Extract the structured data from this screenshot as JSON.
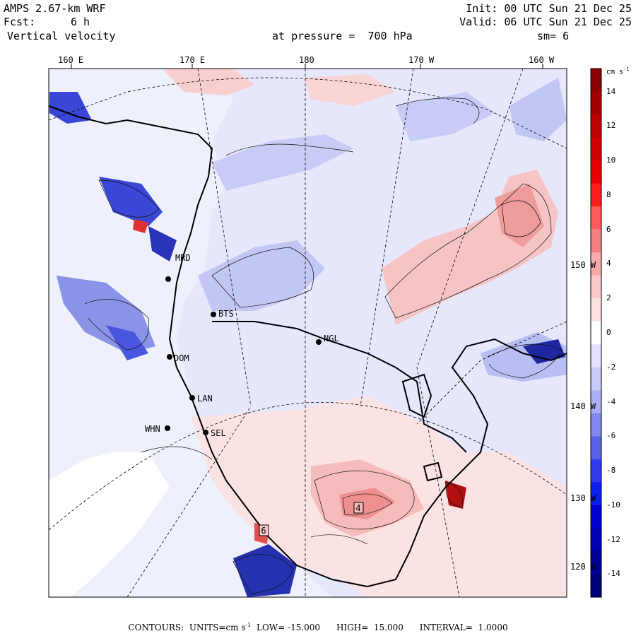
{
  "header": {
    "model": "AMPS 2.67-km WRF",
    "fcst_label": "Fcst:",
    "fcst_value": "6 h",
    "field": "Vertical velocity",
    "init": "Init: 00 UTC Sun 21 Dec 25",
    "valid": "Valid: 06 UTC Sun 21 Dec 25",
    "level": "at pressure =  700 hPa",
    "smoothing": "sm= 6"
  },
  "top_lon_labels": [
    "160 E",
    "170 E",
    "180",
    "170 W",
    "160 W"
  ],
  "right_lon_labels": [
    "150 W",
    "140 W",
    "130 W",
    "120 W"
  ],
  "stations": [
    {
      "id": "BTS",
      "label": "BTS"
    },
    {
      "id": "NGL",
      "label": "NGL"
    },
    {
      "id": "DOM",
      "label": "DOM"
    },
    {
      "id": "LAN",
      "label": "LAN"
    },
    {
      "id": "WHN",
      "label": "WHN"
    },
    {
      "id": "SEL",
      "label": "SEL"
    },
    {
      "id": "MRD",
      "label": "MRD"
    }
  ],
  "map_markers": [
    {
      "id": "max4",
      "text": "4"
    },
    {
      "id": "max6",
      "text": "6"
    }
  ],
  "colorbar": {
    "units": "cm s",
    "units_exp": "-1",
    "ticks": [
      "14",
      "12",
      "10",
      "8",
      "6",
      "4",
      "2",
      "0",
      "-2",
      "-4",
      "-6",
      "-8",
      "-10",
      "-12",
      "-14"
    ],
    "colors": [
      "#8b0000",
      "#a40000",
      "#bd0000",
      "#d20000",
      "#e60000",
      "#ff1e1e",
      "#ff5a5a",
      "#f48080",
      "#f7aaaa",
      "#fac8c8",
      "#fde2e2",
      "#ffffff",
      "#e2e4fd",
      "#c8cbf8",
      "#aab0f4",
      "#8088ec",
      "#5a63e6",
      "#2f3bf0",
      "#0a1ef0",
      "#0000d2",
      "#0000b4",
      "#000096",
      "#00007a"
    ]
  },
  "footer": {
    "contours_label": "CONTOURS:",
    "units_label": "UNITS=cm s",
    "units_exp": "-1",
    "low_label": "LOW=",
    "low_value": "-15.000",
    "high_label": "HIGH=",
    "high_value": "15.000",
    "interval_label": "INTERVAL=",
    "interval_value": "1.0000"
  }
}
